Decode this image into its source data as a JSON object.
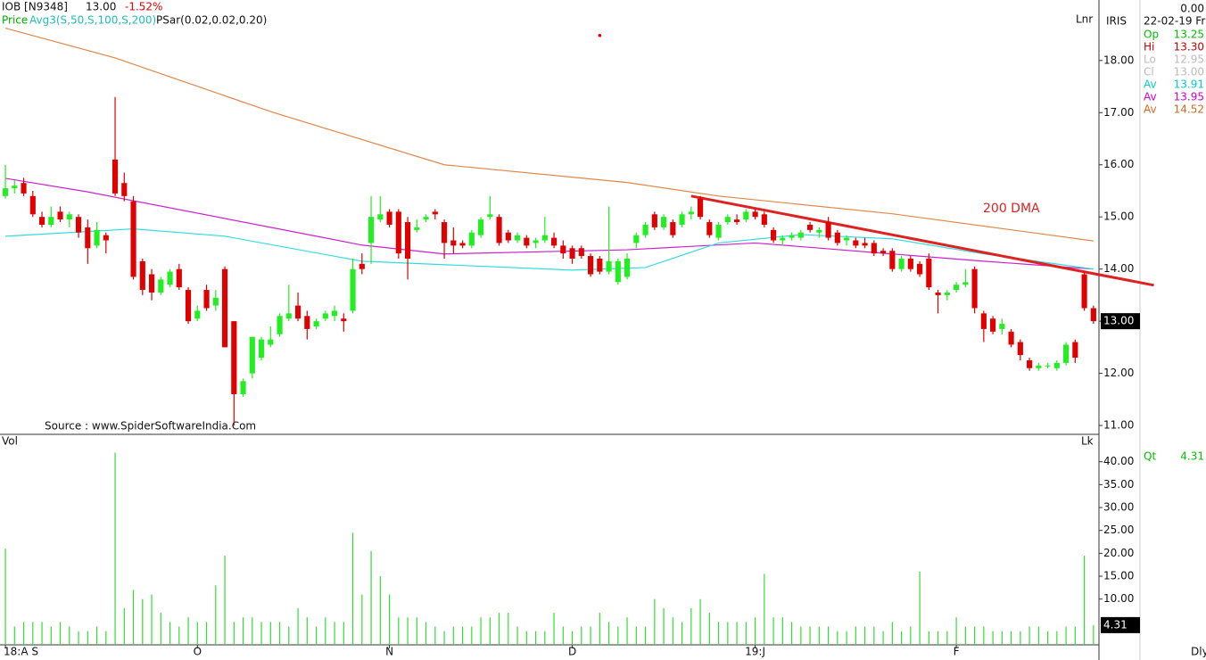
{
  "chart_data": {
    "type": "candlestick",
    "symbol": "IOB [N9348]",
    "last": "13.00",
    "change": "-1.52%",
    "price_label": "Price",
    "avg_label": "Avg3(S,50,S,100,S,200)",
    "psar_label": "PSar(0.02,0.02,0.20)",
    "scale_mode": "Lnr",
    "scale_mode2": "Lk",
    "volume_label": "Vol",
    "period": "Dly",
    "source": "Source : www.SpiderSoftwareIndia.Com",
    "annotation": "200 DMA",
    "panel": {
      "top_value": "0.00",
      "name": "IRIS",
      "date": "22-02-19 Fri",
      "quote": [
        {
          "label": "Op",
          "value": "13.25",
          "color": "#00c000"
        },
        {
          "label": "Hi",
          "value": "13.30",
          "color": "#c00000"
        },
        {
          "label": "Lo",
          "value": "12.95",
          "color": "#bbbbbb"
        },
        {
          "label": "Cl",
          "value": "13.00",
          "color": "#bbbbbb"
        },
        {
          "label": "Av",
          "value": "13.91",
          "color": "#00cccc"
        },
        {
          "label": "Av",
          "value": "13.95",
          "color": "#cc00cc"
        },
        {
          "label": "Av",
          "value": "14.52",
          "color": "#d2691e"
        }
      ],
      "qt": {
        "label": "Qt",
        "value": "4.31",
        "color": "#00c000"
      }
    },
    "up_color": "#22ee22",
    "down_color": "#e00000",
    "xlim": [
      -0.59,
      119.6
    ],
    "xticks": [
      {
        "value": 0,
        "label": "18:A S"
      },
      {
        "value": 21,
        "label": "O"
      },
      {
        "value": 42,
        "label": "N"
      },
      {
        "value": 62,
        "label": "D"
      },
      {
        "value": 82,
        "label": "19:J"
      },
      {
        "value": 104,
        "label": "F"
      }
    ],
    "ylim": [
      10.83,
      19.16
    ],
    "yticks": [
      {
        "value": 11,
        "label": "11.00"
      },
      {
        "value": 12,
        "label": "12.00"
      },
      {
        "value": 13,
        "label": "13.00"
      },
      {
        "value": 14,
        "label": "14.00"
      },
      {
        "value": 15,
        "label": "15.00"
      },
      {
        "value": 16,
        "label": "16.00"
      },
      {
        "value": 17,
        "label": "17.00"
      },
      {
        "value": 18,
        "label": "18.00"
      }
    ],
    "last_price": {
      "value": 13,
      "label": "13.00"
    },
    "ohlc": [
      [
        15.4,
        16.0,
        15.35,
        15.55
      ],
      [
        15.55,
        15.7,
        15.45,
        15.6
      ],
      [
        15.65,
        15.75,
        15.4,
        15.45
      ],
      [
        15.4,
        15.5,
        15.0,
        15.05
      ],
      [
        15.0,
        15.1,
        14.8,
        14.85
      ],
      [
        14.85,
        15.2,
        14.8,
        15.0
      ],
      [
        15.1,
        15.2,
        14.9,
        14.95
      ],
      [
        14.95,
        15.1,
        14.8,
        15.05
      ],
      [
        15.0,
        15.05,
        14.6,
        14.7
      ],
      [
        14.8,
        14.95,
        14.1,
        14.4
      ],
      [
        14.45,
        14.9,
        14.4,
        14.75
      ],
      [
        14.65,
        14.7,
        14.3,
        14.55
      ],
      [
        16.1,
        17.3,
        15.4,
        15.45
      ],
      [
        15.65,
        15.85,
        15.3,
        15.4
      ],
      [
        15.3,
        15.4,
        13.8,
        13.85
      ],
      [
        14.15,
        14.2,
        13.5,
        13.6
      ],
      [
        13.9,
        14.0,
        13.4,
        13.55
      ],
      [
        13.55,
        13.85,
        13.5,
        13.8
      ],
      [
        13.7,
        14.0,
        13.65,
        13.95
      ],
      [
        14.0,
        14.1,
        13.6,
        13.65
      ],
      [
        13.6,
        13.65,
        12.95,
        13.0
      ],
      [
        13.05,
        13.3,
        13.0,
        13.2
      ],
      [
        13.6,
        13.7,
        13.2,
        13.25
      ],
      [
        13.3,
        13.6,
        13.2,
        13.45
      ],
      [
        14.0,
        14.05,
        12.5,
        12.5
      ],
      [
        13.0,
        13.0,
        11.0,
        11.6
      ],
      [
        11.6,
        11.9,
        11.55,
        11.85
      ],
      [
        12.0,
        12.7,
        11.9,
        12.7
      ],
      [
        12.3,
        12.7,
        12.25,
        12.65
      ],
      [
        12.55,
        12.9,
        12.5,
        12.65
      ],
      [
        12.75,
        13.15,
        12.7,
        13.1
      ],
      [
        13.05,
        13.7,
        13.0,
        13.15
      ],
      [
        13.3,
        13.55,
        13.0,
        13.05
      ],
      [
        13.1,
        13.2,
        12.65,
        12.85
      ],
      [
        12.9,
        13.05,
        12.85,
        13.0
      ],
      [
        13.05,
        13.2,
        13.0,
        13.15
      ],
      [
        13.1,
        13.3,
        13.0,
        13.2
      ],
      [
        13.05,
        13.15,
        12.8,
        13.0
      ],
      [
        13.2,
        14.2,
        13.15,
        14.0
      ],
      [
        14.1,
        14.3,
        13.9,
        14.0
      ],
      [
        14.5,
        15.4,
        14.1,
        15.0
      ],
      [
        14.95,
        15.4,
        14.9,
        15.05
      ],
      [
        15.1,
        15.15,
        14.8,
        14.85
      ],
      [
        15.1,
        15.15,
        14.2,
        14.3
      ],
      [
        14.9,
        15.0,
        13.8,
        14.2
      ],
      [
        14.75,
        14.95,
        14.7,
        14.8
      ],
      [
        14.95,
        15.05,
        14.9,
        15.0
      ],
      [
        15.1,
        15.15,
        14.95,
        15.05
      ],
      [
        14.9,
        14.95,
        14.2,
        14.5
      ],
      [
        14.55,
        14.8,
        14.3,
        14.45
      ],
      [
        14.5,
        14.55,
        14.4,
        14.45
      ],
      [
        14.45,
        14.75,
        14.4,
        14.7
      ],
      [
        14.65,
        15.0,
        14.6,
        14.95
      ],
      [
        15.0,
        15.4,
        14.95,
        15.05
      ],
      [
        15.0,
        15.05,
        14.45,
        14.5
      ],
      [
        14.7,
        14.75,
        14.5,
        14.55
      ],
      [
        14.55,
        14.7,
        14.5,
        14.65
      ],
      [
        14.6,
        14.65,
        14.4,
        14.45
      ],
      [
        14.5,
        14.6,
        14.4,
        14.55
      ],
      [
        14.55,
        15.0,
        14.5,
        14.65
      ],
      [
        14.6,
        14.7,
        14.4,
        14.45
      ],
      [
        14.45,
        14.55,
        14.2,
        14.3
      ],
      [
        14.4,
        14.45,
        14.1,
        14.2
      ],
      [
        14.4,
        14.45,
        14.2,
        14.25
      ],
      [
        14.25,
        14.3,
        13.85,
        13.9
      ],
      [
        14.2,
        14.25,
        13.9,
        13.95
      ],
      [
        13.95,
        15.2,
        13.9,
        14.15
      ],
      [
        13.75,
        14.2,
        13.7,
        14.15
      ],
      [
        13.85,
        14.3,
        13.8,
        14.2
      ],
      [
        14.5,
        14.7,
        14.4,
        14.65
      ],
      [
        14.65,
        14.9,
        14.6,
        14.85
      ],
      [
        15.05,
        15.1,
        14.75,
        14.8
      ],
      [
        14.8,
        15.05,
        14.75,
        15.0
      ],
      [
        14.9,
        14.95,
        14.6,
        14.65
      ],
      [
        14.85,
        15.1,
        14.8,
        15.05
      ],
      [
        15.05,
        15.2,
        14.95,
        15.1
      ],
      [
        15.35,
        15.4,
        14.95,
        15.0
      ],
      [
        14.9,
        14.95,
        14.6,
        14.65
      ],
      [
        14.6,
        14.9,
        14.55,
        14.85
      ],
      [
        14.9,
        15.05,
        14.85,
        15.0
      ],
      [
        14.95,
        15.05,
        14.85,
        14.9
      ],
      [
        14.95,
        15.15,
        14.9,
        15.1
      ],
      [
        15.1,
        15.15,
        14.95,
        15.0
      ],
      [
        15.05,
        15.1,
        14.8,
        14.85
      ],
      [
        14.75,
        14.8,
        14.5,
        14.55
      ],
      [
        14.55,
        14.65,
        14.45,
        14.6
      ],
      [
        14.6,
        14.7,
        14.55,
        14.65
      ],
      [
        14.6,
        14.75,
        14.55,
        14.7
      ],
      [
        14.85,
        14.9,
        14.7,
        14.75
      ],
      [
        14.7,
        14.8,
        14.6,
        14.75
      ],
      [
        14.9,
        15.0,
        14.55,
        14.6
      ],
      [
        14.7,
        14.75,
        14.45,
        14.5
      ],
      [
        14.55,
        14.65,
        14.45,
        14.6
      ],
      [
        14.55,
        14.6,
        14.4,
        14.45
      ],
      [
        14.5,
        14.6,
        14.4,
        14.45
      ],
      [
        14.5,
        14.55,
        14.25,
        14.3
      ],
      [
        14.35,
        14.4,
        14.25,
        14.3
      ],
      [
        14.35,
        14.4,
        13.95,
        14.0
      ],
      [
        14.0,
        14.25,
        13.95,
        14.2
      ],
      [
        14.2,
        14.25,
        13.95,
        14.0
      ],
      [
        14.1,
        14.15,
        13.85,
        13.9
      ],
      [
        14.2,
        14.3,
        13.6,
        13.65
      ],
      [
        13.55,
        13.6,
        13.15,
        13.5
      ],
      [
        13.5,
        13.6,
        13.4,
        13.55
      ],
      [
        13.6,
        13.75,
        13.55,
        13.7
      ],
      [
        13.7,
        14.0,
        13.65,
        13.75
      ],
      [
        14.0,
        14.05,
        13.15,
        13.25
      ],
      [
        13.15,
        13.2,
        12.6,
        12.85
      ],
      [
        13.05,
        13.1,
        12.75,
        12.8
      ],
      [
        12.85,
        13.05,
        12.75,
        12.95
      ],
      [
        12.8,
        12.85,
        12.5,
        12.55
      ],
      [
        12.6,
        12.65,
        12.25,
        12.35
      ],
      [
        12.25,
        12.3,
        12.05,
        12.1
      ],
      [
        12.1,
        12.2,
        12.05,
        12.15
      ],
      [
        12.15,
        12.2,
        12.1,
        12.15
      ],
      [
        12.1,
        12.25,
        12.05,
        12.2
      ],
      [
        12.2,
        12.6,
        12.15,
        12.55
      ],
      [
        12.6,
        12.65,
        12.2,
        12.3
      ],
      [
        13.9,
        13.95,
        13.2,
        13.25
      ],
      [
        13.25,
        13.3,
        12.95,
        13.0
      ]
    ],
    "averages": [
      {
        "color": "#e0884a",
        "x": [
          0,
          12,
          29,
          48,
          68,
          78,
          97,
          119
        ],
        "values": [
          18.62,
          18.05,
          17.02,
          16.0,
          15.66,
          15.4,
          15.06,
          14.54
        ]
      },
      {
        "color": "#cc22cc",
        "x": [
          0,
          9,
          29,
          39,
          48,
          68,
          82,
          97,
          107,
          119
        ],
        "values": [
          15.74,
          15.48,
          14.8,
          14.46,
          14.29,
          14.37,
          14.5,
          14.29,
          14.15,
          14.0
        ]
      },
      {
        "color": "#33dddd",
        "x": [
          0,
          14,
          24,
          39,
          62,
          70,
          78,
          87,
          97,
          107,
          119
        ],
        "values": [
          14.63,
          14.77,
          14.63,
          14.15,
          13.98,
          14.03,
          14.5,
          14.66,
          14.58,
          14.29,
          14.0
        ]
      }
    ],
    "trendline": {
      "color": "#dd2222",
      "x": [
        75,
        125.6
      ],
      "values": [
        15.4,
        13.69
      ]
    },
    "psar": {
      "color": "#dd0000",
      "x": [
        65
      ],
      "values": [
        18.48
      ]
    },
    "volume": {
      "color": "#33dd33",
      "ylim": [
        0,
        45.4
      ],
      "yticks": [
        {
          "value": 10,
          "label": "10.00"
        },
        {
          "value": 15,
          "label": "15.00"
        },
        {
          "value": 20,
          "label": "20.00"
        },
        {
          "value": 25,
          "label": "25.00"
        },
        {
          "value": 30,
          "label": "30.00"
        },
        {
          "value": 35,
          "label": "35.00"
        },
        {
          "value": 40,
          "label": "40.00"
        }
      ],
      "last": {
        "value": 4.31,
        "label": "4.31"
      },
      "values": [
        21,
        4,
        5,
        5,
        5,
        4,
        5,
        4,
        3,
        3,
        4,
        3,
        42,
        8,
        12,
        10,
        11,
        7,
        5,
        4,
        6,
        5,
        5,
        13,
        19.5,
        5,
        6,
        6,
        5,
        5,
        5,
        4,
        8,
        6,
        4,
        6,
        5,
        5,
        24.5,
        11,
        20.5,
        15,
        11,
        6,
        6,
        6,
        5,
        4,
        3,
        4,
        4,
        4,
        6,
        6,
        7,
        7,
        4,
        3,
        3,
        3,
        7,
        4,
        3,
        4,
        4,
        7,
        5,
        4,
        6,
        4,
        4,
        10,
        8,
        6,
        5,
        8,
        10,
        7,
        5,
        5,
        5,
        5,
        6,
        15.5,
        6,
        6,
        5,
        4,
        4,
        4,
        4,
        3,
        3,
        4,
        4,
        4,
        3,
        5,
        3,
        4,
        16,
        3,
        3,
        3,
        6,
        4,
        4,
        4,
        3,
        3,
        3,
        3,
        4,
        4,
        3,
        3,
        4,
        4,
        19.5,
        4.31
      ]
    }
  }
}
